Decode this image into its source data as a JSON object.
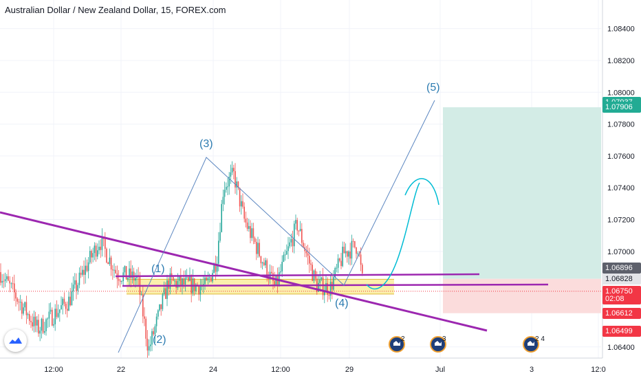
{
  "header": {
    "title": "Australian Dollar / New Zealand Dollar, 15, FOREX.com"
  },
  "chart_data": {
    "type": "candlestick",
    "y_scale": {
      "min": 1.0633,
      "max": 1.0858
    },
    "y_ticks": [
      "1.08400",
      "1.08200",
      "1.08000",
      "1.07800",
      "1.07600",
      "1.07400",
      "1.07200",
      "1.07000",
      "1.06400"
    ],
    "x_ticks": [
      "12:00",
      "22",
      "24",
      "12:00",
      "29",
      "Jul",
      "3",
      "12:0"
    ],
    "grid": true,
    "wave_labels": [
      "(1)",
      "(2)",
      "(3)",
      "(4)",
      "(5)"
    ],
    "price_path": [
      [
        0,
        1.0687
      ],
      [
        55,
        1.0651
      ],
      [
        100,
        1.0669
      ],
      [
        145,
        1.0707
      ],
      [
        170,
        1.0686
      ],
      [
        200,
        1.0683
      ],
      [
        216,
        1.0638
      ],
      [
        245,
        1.0681
      ],
      [
        270,
        1.0679
      ],
      [
        300,
        1.0678
      ],
      [
        315,
        1.0695
      ],
      [
        325,
        1.0741
      ],
      [
        340,
        1.0748
      ],
      [
        355,
        1.072
      ],
      [
        400,
        1.0677
      ],
      [
        432,
        1.0717
      ],
      [
        460,
        1.0679
      ],
      [
        480,
        1.0677
      ],
      [
        500,
        1.0699
      ],
      [
        520,
        1.0704
      ],
      [
        528,
        1.0678
      ]
    ],
    "zones": {
      "take_profit": {
        "top": 1.07906,
        "bottom": 1.06828,
        "color": "#d3ece6"
      },
      "stop_loss": {
        "top": 1.06828,
        "bottom": 1.06612,
        "color": "#fbdcdc"
      },
      "support": {
        "top": 1.06825,
        "bottom": 1.06732,
        "color": "#fbf0ac"
      }
    },
    "price_labels": [
      {
        "text": "1.07937",
        "value": 1.07937,
        "bg": "#22ab94",
        "fg": "#ffffff"
      },
      {
        "text": "1.07906",
        "value": 1.07906,
        "bg": "#22ab94",
        "fg": "#ffffff"
      },
      {
        "text": "1.06896",
        "value": 1.06896,
        "bg": "#5d606b",
        "fg": "#ffffff"
      },
      {
        "text": "1.06828",
        "value": 1.06828,
        "bg": "#e3e4e8",
        "fg": "#131722"
      },
      {
        "text": "1.06750",
        "value": 1.0675,
        "bg": "#f23645",
        "fg": "#ffffff"
      },
      {
        "text": "02:08",
        "value": 1.067,
        "bg": "#f23645",
        "fg": "#ffffff"
      },
      {
        "text": "1.06612",
        "value": 1.06612,
        "bg": "#f23645",
        "fg": "#ffffff"
      },
      {
        "text": "1.06499",
        "value": 1.06499,
        "bg": "#f23645",
        "fg": "#ffffff"
      }
    ],
    "colors": {
      "up": "#26a69a",
      "down": "#ef5350",
      "trend": "#9c27b0",
      "wave": "#2a7ab0",
      "accent": "#00bcd4"
    }
  },
  "events": [
    {
      "count": "2"
    },
    {
      "count": "3"
    },
    {
      "count": "2 4"
    }
  ]
}
